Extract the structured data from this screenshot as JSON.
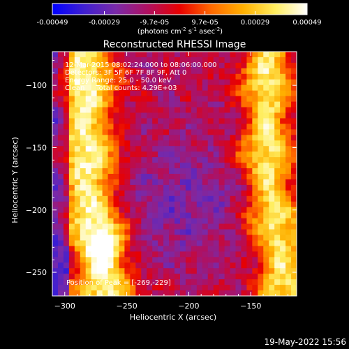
{
  "colors": {
    "background": "#000000",
    "text": "#ffffff",
    "colormap": [
      "#0000ff",
      "#4020d0",
      "#7a2aa8",
      "#b01060",
      "#e80000",
      "#ff6a00",
      "#ffb000",
      "#ffee60",
      "#ffffff"
    ]
  },
  "colorbar": {
    "tick_labels": [
      "-0.00049",
      "-0.00029",
      "-9.7e-05",
      "9.7e-05",
      "0.00029",
      "0.00049"
    ],
    "range": [
      -0.00049,
      0.00049
    ],
    "unit_html": "(photons cm<tspan dy='-4' font-size='7'>-2</tspan><tspan dy='4'> s</tspan><tspan dy='-4' font-size='7'>-1</tspan><tspan dy='4'> asec</tspan><tspan dy='-4' font-size='7'>-2</tspan><tspan dy='4'>)</tspan>"
  },
  "chart_data": {
    "type": "heatmap",
    "title": "Reconstructed RHESSI Image",
    "xlabel": "Heliocentric X (arcsec)",
    "ylabel": "Heliocentric Y (arcsec)",
    "xlim": [
      -310,
      -113
    ],
    "ylim": [
      -269,
      -73
    ],
    "xticks": [
      -300,
      -250,
      -200,
      -150
    ],
    "yticks": [
      -100,
      -150,
      -200,
      -250
    ],
    "info_lines": [
      "12-Mar-2015 08:02:24.000 to 08:06:00.000",
      "Detectors: 3F 5F 6F 7F 8F 9F, Att 0",
      "Energy Range: 25.0 - 50.0 keV",
      "Clean     Total counts: 4.29E+03"
    ],
    "peak_label": "Position of Peak = [-269,-229]",
    "peak": [
      -269,
      -229
    ],
    "features": [
      {
        "type": "left-bright-band",
        "center_x_by_y": [
          [
            -75,
            -285
          ],
          [
            -150,
            -283
          ],
          [
            -200,
            -280
          ],
          [
            -240,
            -270
          ],
          [
            -269,
            -268
          ]
        ]
      },
      {
        "type": "right-bright-band",
        "center_x_by_y": [
          [
            -75,
            -136
          ],
          [
            -125,
            -137
          ],
          [
            -175,
            -135
          ],
          [
            -225,
            -127
          ],
          [
            -269,
            -122
          ]
        ]
      },
      {
        "type": "central-minimum",
        "center": [
          -205,
          -195
        ]
      }
    ]
  },
  "footer": {
    "date_stamp": "19-May-2022 15:56"
  }
}
